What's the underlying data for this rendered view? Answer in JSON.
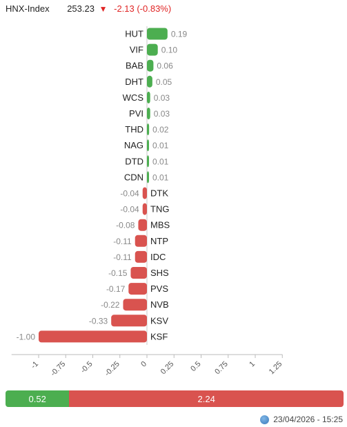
{
  "header": {
    "index_name": "HNX-Index",
    "index_value": "253.23",
    "arrow": "▼",
    "change": "-2.13 (-0.83%)"
  },
  "chart_data": {
    "type": "bar",
    "orientation": "horizontal",
    "categories": [
      "HUT",
      "VIF",
      "BAB",
      "DHT",
      "WCS",
      "PVI",
      "THD",
      "NAG",
      "DTD",
      "CDN",
      "DTK",
      "TNG",
      "MBS",
      "NTP",
      "IDC",
      "SHS",
      "PVS",
      "NVB",
      "KSV",
      "KSF"
    ],
    "values": [
      0.19,
      0.1,
      0.06,
      0.05,
      0.03,
      0.03,
      0.02,
      0.01,
      0.01,
      0.01,
      -0.04,
      -0.04,
      -0.08,
      -0.11,
      -0.11,
      -0.15,
      -0.17,
      -0.22,
      -0.33,
      -1.0
    ],
    "value_labels": [
      "0.19",
      "0.10",
      "0.06",
      "0.05",
      "0.03",
      "0.03",
      "0.02",
      "0.01",
      "0.01",
      "0.01",
      "-0.04",
      "-0.04",
      "-0.08",
      "-0.11",
      "-0.11",
      "-0.15",
      "-0.17",
      "-0.22",
      "-0.33",
      "-1.00"
    ],
    "xlim": [
      -1.25,
      1.25
    ],
    "xticks": [
      -1,
      -0.75,
      -0.5,
      -0.25,
      0,
      0.25,
      0.5,
      0.75,
      1,
      1.25
    ],
    "xtick_labels": [
      "-1",
      "-0.75",
      "-0.5",
      "-0.25",
      "0",
      "0.25",
      "0.5",
      "0.75",
      "1",
      "1.25"
    ],
    "colors": {
      "positive": "#4cae50",
      "negative": "#d9534f"
    },
    "title": "",
    "xlabel": "",
    "ylabel": ""
  },
  "summary": {
    "up_value": "0.52",
    "down_value": "2.24",
    "up_color": "#4cae50",
    "down_color": "#d9534f"
  },
  "footer": {
    "timestamp": "23/04/2026 - 15:25",
    "icon": "globe-icon"
  }
}
